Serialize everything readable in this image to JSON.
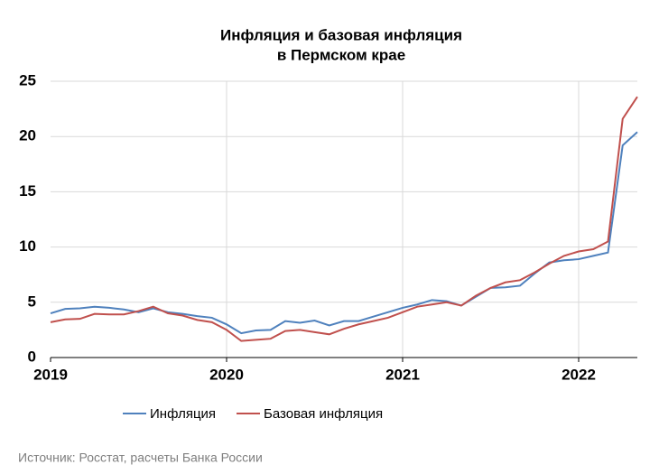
{
  "chart_data": {
    "type": "line",
    "title": [
      "Инфляция и базовая инфляция",
      "в Пермском крае"
    ],
    "categories": [
      "2019",
      null,
      null,
      null,
      null,
      null,
      null,
      null,
      null,
      null,
      null,
      null,
      "2020",
      null,
      null,
      null,
      null,
      null,
      null,
      null,
      null,
      null,
      null,
      null,
      "2021",
      null,
      null,
      null,
      null,
      null,
      null,
      null,
      null,
      null,
      null,
      null,
      "2022",
      null,
      null,
      null,
      null
    ],
    "series": [
      {
        "name": "Инфляция",
        "color": "#4f81bd",
        "values": [
          4.0,
          4.4,
          4.45,
          4.6,
          4.5,
          4.35,
          4.1,
          4.45,
          4.1,
          3.95,
          3.75,
          3.6,
          3.0,
          2.2,
          2.45,
          2.5,
          3.3,
          3.15,
          3.35,
          2.9,
          3.3,
          3.3,
          3.7,
          4.1,
          4.5,
          4.8,
          5.2,
          5.1,
          4.7,
          5.5,
          6.3,
          6.35,
          6.5,
          7.6,
          8.6,
          8.8,
          8.9,
          9.2,
          9.5,
          19.2,
          20.4
        ]
      },
      {
        "name": "Базовая инфляция",
        "color": "#c0504d",
        "values": [
          3.2,
          3.45,
          3.5,
          3.95,
          3.9,
          3.9,
          4.2,
          4.6,
          4.0,
          3.8,
          3.4,
          3.2,
          2.5,
          1.5,
          1.6,
          1.7,
          2.4,
          2.5,
          2.3,
          2.1,
          2.6,
          3.0,
          3.3,
          3.6,
          4.1,
          4.6,
          4.8,
          5.0,
          4.7,
          5.6,
          6.3,
          6.8,
          7.0,
          7.7,
          8.5,
          9.2,
          9.6,
          9.8,
          10.5,
          21.6,
          23.6
        ]
      }
    ],
    "ylim": [
      0,
      25
    ],
    "yticks": [
      0,
      5,
      10,
      15,
      20,
      25
    ],
    "grid": true,
    "legend": "bottom",
    "source": "Источник: Росстат, расчеты Банка России"
  }
}
